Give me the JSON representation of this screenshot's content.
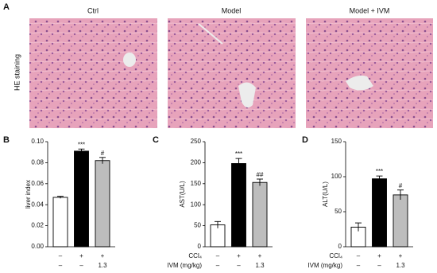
{
  "panel_a": {
    "label": "A",
    "columns": [
      "Ctrl",
      "Model",
      "Model + IVM"
    ],
    "row_label": "HE staining"
  },
  "chart_data": [
    {
      "type": "bar",
      "panel": "B",
      "y_label": "liver index",
      "values": [
        0.047,
        0.091,
        0.082
      ],
      "errors": [
        0.001,
        0.002,
        0.003
      ],
      "colors": [
        "#ffffff",
        "#000000",
        "#bdbdbd"
      ],
      "annotations": [
        null,
        "***",
        "#"
      ],
      "ylim": [
        0,
        0.1
      ],
      "yticks": [
        {
          "value": 0,
          "label": "0.00"
        },
        {
          "value": 0.02,
          "label": "0.02"
        },
        {
          "value": 0.04,
          "label": "0.04"
        },
        {
          "value": 0.06,
          "label": "0.06"
        },
        {
          "value": 0.08,
          "label": "0.08"
        },
        {
          "value": 0.1,
          "label": "0.10"
        }
      ],
      "conditions": {
        "rows": [
          [
            "–",
            "+",
            "+"
          ],
          [
            "–",
            "–",
            "1.3"
          ]
        ]
      }
    },
    {
      "type": "bar",
      "panel": "C",
      "y_label": "AST(U/L)",
      "values": [
        52,
        198,
        153
      ],
      "errors": [
        8,
        12,
        8
      ],
      "colors": [
        "#ffffff",
        "#000000",
        "#bdbdbd"
      ],
      "annotations": [
        null,
        "***",
        "##"
      ],
      "ylim": [
        0,
        250
      ],
      "yticks": [
        0,
        50,
        100,
        150,
        200,
        250
      ],
      "conditions": {
        "labels": [
          "CCl₄",
          "IVM (mg/kg)"
        ],
        "rows": [
          [
            "–",
            "+",
            "+"
          ],
          [
            "–",
            "–",
            "1.3"
          ]
        ]
      }
    },
    {
      "type": "bar",
      "panel": "D",
      "y_label": "ALT(U/L)",
      "values": [
        28,
        97,
        74
      ],
      "errors": [
        6,
        4,
        7
      ],
      "colors": [
        "#ffffff",
        "#000000",
        "#bdbdbd"
      ],
      "annotations": [
        null,
        "***",
        "#"
      ],
      "ylim": [
        0,
        150
      ],
      "yticks": [
        0,
        50,
        100,
        150
      ],
      "conditions": {
        "labels": [
          "CCl₄",
          "IVM (mg/kg)"
        ],
        "rows": [
          [
            "–",
            "+",
            "+"
          ],
          [
            "–",
            "–",
            "1.3"
          ]
        ]
      }
    }
  ]
}
